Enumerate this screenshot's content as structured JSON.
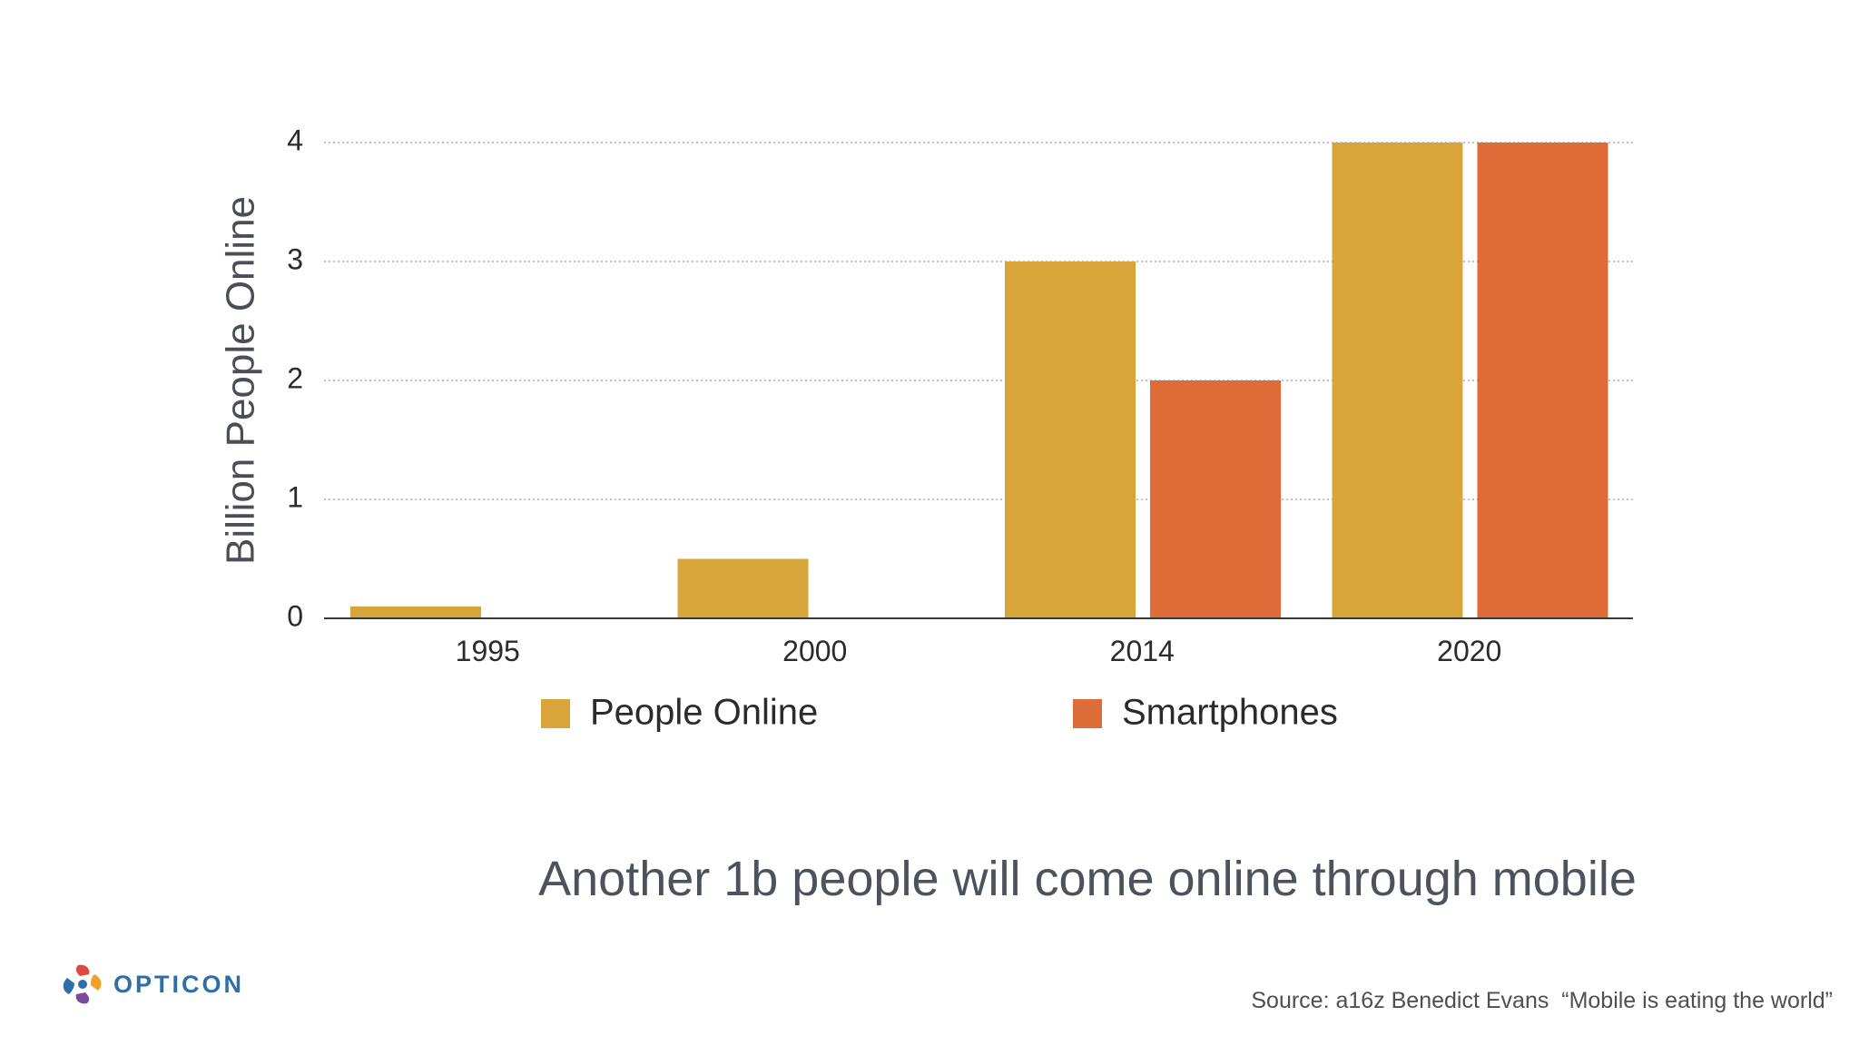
{
  "chart_data": {
    "type": "bar",
    "ylabel": "Billion People Online",
    "ylim": [
      0,
      4
    ],
    "yticks": [
      "0",
      "1",
      "2",
      "3",
      "4"
    ],
    "categories": [
      "1995",
      "2000",
      "2014",
      "2020"
    ],
    "series": [
      {
        "name": "People Online",
        "color": "#D8A53A",
        "values": [
          0.1,
          0.5,
          3,
          4
        ]
      },
      {
        "name": "Smartphones",
        "color": "#DE6C38",
        "values": [
          0,
          0,
          2,
          4
        ]
      }
    ],
    "grid": true,
    "legend": "bottom"
  },
  "subtitle": "Another 1b people will come online through mobile",
  "source": "Source: a16z Benedict Evans  “Mobile is eating the world”",
  "logo": {
    "text": "OPTICON",
    "colors": [
      "#E0483F",
      "#F2A02B",
      "#7D4A9A",
      "#2E6FA8"
    ]
  }
}
